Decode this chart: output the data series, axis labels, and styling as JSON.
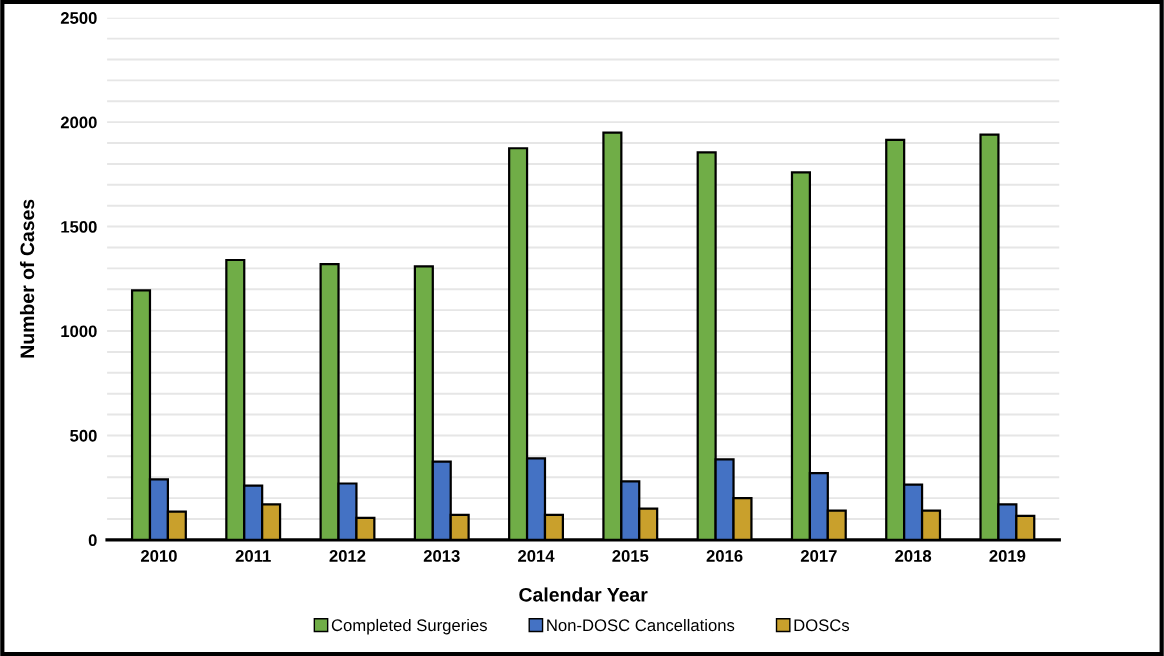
{
  "chart_data": {
    "type": "bar",
    "xlabel": "Calendar Year",
    "ylabel": "Number of Cases",
    "categories": [
      "2010",
      "2011",
      "2012",
      "2013",
      "2014",
      "2015",
      "2016",
      "2017",
      "2018",
      "2019"
    ],
    "series": [
      {
        "name": "Completed Surgeries",
        "color": "#70ad47",
        "values": [
          1195,
          1340,
          1320,
          1310,
          1875,
          1950,
          1855,
          1760,
          1915,
          1940
        ]
      },
      {
        "name": "Non-DOSC Cancellations",
        "color": "#4472c4",
        "values": [
          290,
          260,
          270,
          375,
          390,
          280,
          385,
          320,
          265,
          170
        ]
      },
      {
        "name": "DOSCs",
        "color": "#c9a02c",
        "values": [
          135,
          170,
          105,
          120,
          120,
          150,
          200,
          140,
          140,
          115
        ]
      }
    ],
    "ylim": [
      0,
      2500
    ],
    "yticks": [
      0,
      {
        "value": 100,
        "label": null
      },
      {
        "value": 200,
        "label": null
      },
      {
        "value": 300,
        "label": null
      },
      {
        "value": 400,
        "label": null
      },
      500,
      {
        "value": 600,
        "label": null
      },
      {
        "value": 700,
        "label": null
      },
      {
        "value": 800,
        "label": null
      },
      {
        "value": 900,
        "label": null
      },
      1000,
      {
        "value": 1100,
        "label": null
      },
      {
        "value": 1200,
        "label": null
      },
      {
        "value": 1300,
        "label": null
      },
      {
        "value": 1400,
        "label": null
      },
      1500,
      {
        "value": 1600,
        "label": null
      },
      {
        "value": 1700,
        "label": null
      },
      {
        "value": 1800,
        "label": null
      },
      {
        "value": 1900,
        "label": null
      },
      2000,
      {
        "value": 2100,
        "label": null
      },
      {
        "value": 2200,
        "label": null
      },
      {
        "value": 2300,
        "label": null
      },
      {
        "value": 2400,
        "label": null
      },
      2500
    ],
    "grid": "y",
    "legend": "bottom"
  }
}
